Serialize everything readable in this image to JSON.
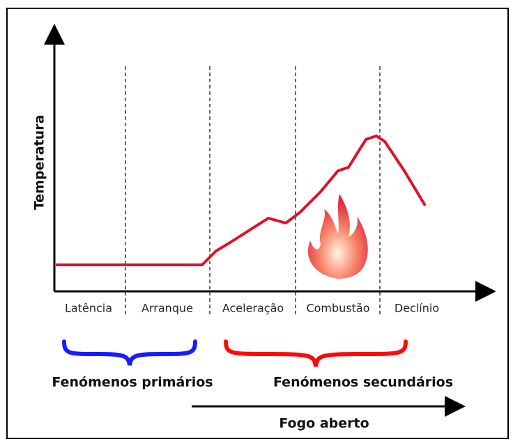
{
  "axis_label": "Temperatura",
  "phases": [
    "Latência",
    "Arranque",
    "Aceleração",
    "Combustão",
    "Declínio"
  ],
  "groups": [
    "Fenómenos primários",
    "Fenómenos secundários"
  ],
  "arrow_label": "Fogo aberto"
}
